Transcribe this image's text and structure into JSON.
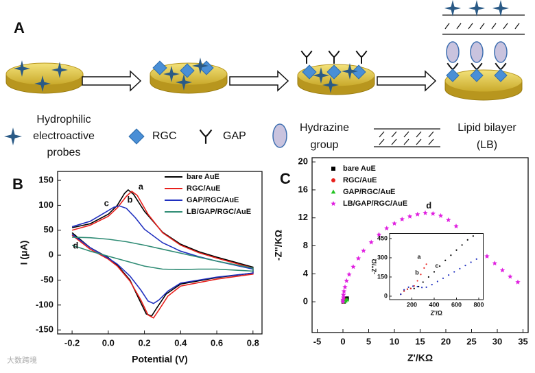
{
  "diagram": {
    "label": "A",
    "legend": [
      {
        "label": [
          "Hydrophilic",
          "electroactive",
          "probes"
        ]
      },
      {
        "label": [
          "RGC"
        ]
      },
      {
        "label": [
          "GAP"
        ]
      },
      {
        "label": [
          "Hydrazine",
          "group"
        ]
      },
      {
        "label": [
          "Lipid bilayer",
          "(LB)"
        ]
      }
    ]
  },
  "watermark": "大数跨境",
  "chart_data": [
    {
      "type": "line",
      "panel_label": "B",
      "xlabel": "Potential (V)",
      "ylabel": "I (μA)",
      "xlim": [
        -0.28,
        0.85
      ],
      "ylim": [
        -158,
        168
      ],
      "xticks": [
        -0.2,
        {
          "value": 0,
          "label": "0.0"
        },
        0.2,
        0.4,
        0.6,
        0.8
      ],
      "yticks": [
        -150,
        -100,
        -50,
        0,
        50,
        100,
        150
      ],
      "legend": "upper right",
      "series": [
        {
          "name": "bare AuE",
          "color": "#000000",
          "x": [
            -0.2,
            -0.1,
            0.0,
            0.05,
            0.09,
            0.11,
            0.14,
            0.2,
            0.3,
            0.4,
            0.5,
            0.6,
            0.7,
            0.8,
            0.8,
            0.6,
            0.4,
            0.32,
            0.27,
            0.24,
            0.21,
            0.17,
            0.12,
            0.05,
            0.0,
            -0.1,
            -0.2
          ],
          "values": [
            55,
            63,
            82,
            100,
            124,
            131,
            122,
            88,
            46,
            22,
            7,
            -4,
            -14,
            -24,
            -36,
            -45,
            -58,
            -78,
            -105,
            -122,
            -118,
            -88,
            -50,
            -20,
            -5,
            15,
            45
          ]
        },
        {
          "name": "RGC/AuE",
          "color": "#e8201c",
          "x": [
            -0.2,
            -0.1,
            0.0,
            0.05,
            0.1,
            0.13,
            0.16,
            0.22,
            0.3,
            0.4,
            0.5,
            0.6,
            0.7,
            0.8,
            0.8,
            0.6,
            0.4,
            0.33,
            0.28,
            0.25,
            0.22,
            0.18,
            0.12,
            0.05,
            0.0,
            -0.1,
            -0.2
          ],
          "values": [
            50,
            60,
            78,
            95,
            118,
            128,
            120,
            82,
            45,
            20,
            5,
            -6,
            -16,
            -26,
            -38,
            -48,
            -62,
            -82,
            -110,
            -126,
            -120,
            -90,
            -52,
            -22,
            -8,
            12,
            40
          ]
        },
        {
          "name": "GAP/RGC/AuE",
          "color": "#1f2fbf",
          "x": [
            -0.2,
            -0.1,
            -0.02,
            0.03,
            0.06,
            0.1,
            0.15,
            0.2,
            0.3,
            0.4,
            0.5,
            0.6,
            0.7,
            0.8,
            0.8,
            0.6,
            0.4,
            0.33,
            0.28,
            0.25,
            0.22,
            0.18,
            0.12,
            0.05,
            0.0,
            -0.1,
            -0.2
          ],
          "values": [
            57,
            68,
            85,
            96,
            99,
            94,
            75,
            52,
            25,
            8,
            -3,
            -12,
            -20,
            -28,
            -36,
            -44,
            -56,
            -72,
            -90,
            -97,
            -92,
            -70,
            -42,
            -18,
            -6,
            15,
            42
          ]
        },
        {
          "name": "LB/GAP/RGC/AuE",
          "color": "#2e8b74",
          "x": [
            -0.2,
            -0.1,
            0.0,
            0.1,
            0.2,
            0.3,
            0.4,
            0.5,
            0.6,
            0.7,
            0.8,
            0.8,
            0.7,
            0.6,
            0.5,
            0.4,
            0.3,
            0.2,
            0.1,
            0.0,
            -0.1,
            -0.2
          ],
          "values": [
            36,
            35,
            32,
            27,
            20,
            12,
            4,
            -4,
            -12,
            -19,
            -26,
            -32,
            -30,
            -28,
            -28,
            -29,
            -28,
            -22,
            -12,
            -2,
            8,
            20
          ]
        }
      ],
      "annotations": [
        {
          "text": "a",
          "x": 0.18,
          "y": 136
        },
        {
          "text": "b",
          "x": 0.12,
          "y": 110
        },
        {
          "text": "c",
          "x": -0.01,
          "y": 103
        },
        {
          "text": "d",
          "x": -0.18,
          "y": 18
        }
      ]
    },
    {
      "type": "scatter",
      "panel_label": "C",
      "xlabel": "Z'/KΩ",
      "ylabel": "-Z''/KΩ",
      "xlim": [
        -6,
        36
      ],
      "ylim": [
        -4.4,
        20.6
      ],
      "xticks": [
        -5,
        0,
        5,
        10,
        15,
        20,
        25,
        30,
        35
      ],
      "yticks": [
        0,
        4,
        8,
        12,
        16,
        20
      ],
      "legend": "upper left",
      "series": [
        {
          "name": "bare AuE",
          "color": "#000000",
          "marker": "square",
          "x": [
            0.1,
            0.2,
            0.4,
            0.75
          ],
          "values": [
            0.015,
            0.06,
            0.23,
            0.47
          ]
        },
        {
          "name": "RGC/AuE",
          "color": "#e8201c",
          "marker": "circle",
          "x": [
            0.1,
            0.19,
            0.33
          ],
          "values": [
            0.015,
            0.06,
            0.25
          ]
        },
        {
          "name": "GAP/RGC/AuE",
          "color": "#22c322",
          "marker": "triangle",
          "x": [
            0.1,
            0.25,
            0.48,
            0.78
          ],
          "values": [
            0.015,
            0.075,
            0.14,
            0.29
          ]
        },
        {
          "name": "LB/GAP/RGC/AuE",
          "color": "#e020e0",
          "marker": "star",
          "x": [
            0,
            0,
            0.1,
            0.1,
            0.2,
            0.4,
            0.7,
            1.2,
            2,
            3,
            4,
            5.5,
            7,
            8.5,
            10,
            11.5,
            13,
            14.5,
            16,
            17.5,
            19,
            20.5,
            22,
            23.5,
            25,
            26.5,
            28,
            29.5,
            31,
            32.5,
            34
          ],
          "values": [
            0,
            0.3,
            0.6,
            1,
            1.5,
            2.1,
            3,
            3.9,
            5,
            6.2,
            7.3,
            8.5,
            9.6,
            10.5,
            11.2,
            11.8,
            12.2,
            12.5,
            12.7,
            12.6,
            12.3,
            11.7,
            10.8,
            9.5,
            8.3,
            7.5,
            6.5,
            5.5,
            4.5,
            3.6,
            2.8
          ]
        }
      ],
      "annotations": [
        {
          "text": "d",
          "x": 16.7,
          "y": 13.7
        }
      ]
    },
    {
      "type": "scatter",
      "xlabel": "Z'/Ω",
      "ylabel": "-Z''/Ω",
      "xlim": [
        0,
        840
      ],
      "ylim": [
        -27,
        490
      ],
      "xticks": [
        200,
        400,
        600,
        800
      ],
      "yticks": [
        0,
        150,
        300,
        450
      ],
      "series": [
        {
          "color": "#000000",
          "marker": "dot",
          "x": [
            100,
            130,
            160,
            190,
            220,
            260,
            300,
            350,
            400,
            450,
            500,
            550,
            600,
            650,
            700,
            750
          ],
          "values": [
            15,
            40,
            55,
            60,
            60,
            75,
            110,
            150,
            190,
            235,
            280,
            320,
            360,
            400,
            440,
            470
          ]
        },
        {
          "color": "#e8201c",
          "marker": "dot",
          "x": [
            100,
            130,
            160,
            190,
            220,
            250,
            280,
            310,
            330
          ],
          "values": [
            15,
            40,
            55,
            60,
            80,
            120,
            170,
            220,
            250
          ]
        },
        {
          "color": "#1f2fbf",
          "marker": "dot",
          "x": [
            100,
            130,
            170,
            210,
            250,
            290,
            330,
            380,
            430,
            480,
            530,
            580,
            630,
            680,
            730,
            780
          ],
          "values": [
            15,
            50,
            70,
            78,
            75,
            68,
            70,
            90,
            115,
            140,
            165,
            190,
            215,
            240,
            265,
            290
          ]
        }
      ],
      "annotations": [
        {
          "text": "a",
          "x": 265,
          "y": 305
        },
        {
          "text": "b",
          "x": 246,
          "y": 182
        },
        {
          "text": "c",
          "x": 425,
          "y": 236
        }
      ]
    }
  ]
}
